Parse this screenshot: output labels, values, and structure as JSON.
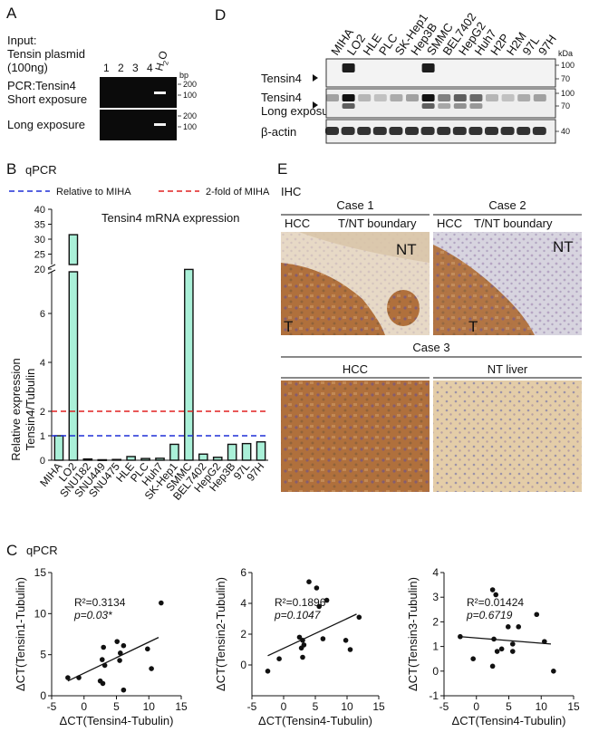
{
  "panelA": {
    "letter": "A",
    "input_line1": "Input:",
    "input_line2": "Tensin plasmid",
    "input_line3": "(100ng)",
    "lanes": [
      "1",
      "2",
      "3",
      "4",
      "H",
      "2",
      "O"
    ],
    "row1_line1": "PCR:Tensin4",
    "row1_line2": "Short exposure",
    "row2": "Long exposure",
    "bp_unit": "bp",
    "bp_marks": [
      "200",
      "100",
      "200",
      "100"
    ]
  },
  "panelB": {
    "letter": "B",
    "method": "qPCR",
    "legend_blue": "Relative to MIHA",
    "legend_red": "2-fold of MIHA",
    "chart_title": "Tensin4 mRNA expression",
    "ylabel1": "Relative expression",
    "ylabel2": "Tensin4/Tubulin",
    "colors": {
      "bar": "#aaf0d8",
      "blue_line": "#1f2fd6",
      "red_line": "#e02020"
    }
  },
  "panelC": {
    "letter": "C",
    "method": "qPCR",
    "x_tick_labels": [
      "-5",
      "0",
      "5",
      "10",
      "15"
    ]
  },
  "panelD": {
    "letter": "D",
    "lanes": [
      "MIHA",
      "LO2",
      "HLE",
      "PLC",
      "SK-Hep1",
      "Hep3B",
      "SMMC",
      "BEL7402",
      "HepG2",
      "Huh7",
      "H2P",
      "H2M",
      "97L",
      "97H"
    ],
    "row1": "Tensin4",
    "row2_line1": "Tensin4",
    "row2_line2": "Long exposure",
    "row3": "β-actin",
    "kda_unit": "kDa",
    "kda_marks": [
      "100",
      "70",
      "100",
      "70",
      "40"
    ]
  },
  "panelE": {
    "letter": "E",
    "method": "IHC",
    "case1": "Case 1",
    "case2": "Case 2",
    "case3": "Case 3",
    "hcc": "HCC",
    "boundary": "T/NT boundary",
    "nt_liver": "NT liver",
    "nt": "NT",
    "t": "T"
  },
  "chart_data": [
    {
      "type": "bar",
      "categories": [
        "MIHA",
        "LO2",
        "SNU182",
        "SNU449",
        "SNU475",
        "HLE",
        "PLC",
        "Huh7",
        "SK-Hep1",
        "SMMC",
        "BEL7402",
        "HepG2",
        "Hep3B",
        "97L",
        "97H"
      ],
      "values": [
        1.0,
        31.5,
        0.05,
        0.02,
        0.03,
        0.15,
        0.07,
        0.08,
        0.65,
        7.8,
        0.25,
        0.12,
        0.65,
        0.68,
        0.75
      ],
      "title": "Tensin4 mRNA expression",
      "ylabel": "Relative expression Tensin4/Tubulin",
      "ylim": [
        0,
        40
      ],
      "axis_break": [
        8,
        20
      ],
      "y_ticks": [
        0,
        1,
        2,
        4,
        6,
        20,
        25,
        30,
        35,
        40
      ],
      "reference_lines": [
        {
          "name": "Relative to MIHA",
          "y": 1
        },
        {
          "name": "2-fold of MIHA",
          "y": 2
        }
      ]
    },
    {
      "type": "scatter",
      "xlabel": "ΔCT(Tensin4-Tubulin)",
      "ylabel": "ΔCT(Tensin1-Tubulin)",
      "xlim": [
        -5,
        15
      ],
      "ylim": [
        0,
        15
      ],
      "y_ticks": [
        0,
        5,
        10,
        15
      ],
      "r2_label": "R²=0.3134",
      "p_label": "p=0.03*",
      "fit": [
        [
          -2.5,
          1.8
        ],
        [
          11.5,
          7.1
        ]
      ],
      "x": [
        -2.5,
        -0.8,
        2.5,
        3.0,
        2.8,
        2.9,
        3.2,
        5.1,
        5.6,
        5.5,
        6.1,
        6.1,
        9.8,
        10.4,
        11.9
      ],
      "y": [
        2.2,
        2.2,
        1.8,
        5.9,
        4.4,
        1.5,
        3.7,
        6.6,
        5.2,
        4.3,
        0.7,
        6.1,
        5.7,
        3.3,
        11.3
      ]
    },
    {
      "type": "scatter",
      "xlabel": "ΔCT(Tensin4-Tubulin)",
      "ylabel": "ΔCT(Tensin2-Tubulin)",
      "xlim": [
        -5,
        15
      ],
      "ylim": [
        -2,
        6
      ],
      "y_ticks": [
        0,
        2,
        4,
        6
      ],
      "r2_label": "R²=0.1896",
      "p_label": "p=0.1047",
      "fit": [
        [
          -2.5,
          0.6
        ],
        [
          11.5,
          3.3
        ]
      ],
      "x": [
        -2.5,
        -0.7,
        2.5,
        3.0,
        2.8,
        3.0,
        3.2,
        4.0,
        5.2,
        5.6,
        6.2,
        6.8,
        9.8,
        10.5,
        11.9
      ],
      "y": [
        -0.4,
        0.4,
        1.8,
        1.6,
        1.1,
        0.5,
        1.3,
        5.4,
        5.0,
        3.8,
        1.7,
        4.2,
        1.6,
        1.0,
        3.1
      ]
    },
    {
      "type": "scatter",
      "xlabel": "ΔCT(Tensin4-Tubulin)",
      "ylabel": "ΔCT(Tensin3-Tubulin)",
      "xlim": [
        -5,
        15
      ],
      "ylim": [
        -1,
        4
      ],
      "y_ticks": [
        -1,
        0,
        1,
        2,
        3,
        4
      ],
      "r2_label": "R²=0.01424",
      "p_label": "p=0.6719",
      "fit": [
        [
          -2.5,
          1.4
        ],
        [
          11.5,
          1.1
        ]
      ],
      "x": [
        -2.5,
        -0.5,
        2.5,
        2.5,
        3.0,
        2.7,
        3.2,
        3.9,
        4.9,
        5.6,
        5.6,
        6.5,
        9.3,
        10.5,
        11.9
      ],
      "y": [
        1.4,
        0.5,
        0.2,
        3.3,
        3.1,
        1.3,
        0.8,
        0.9,
        1.8,
        1.1,
        0.8,
        1.8,
        2.3,
        1.2,
        0.0
      ]
    }
  ]
}
